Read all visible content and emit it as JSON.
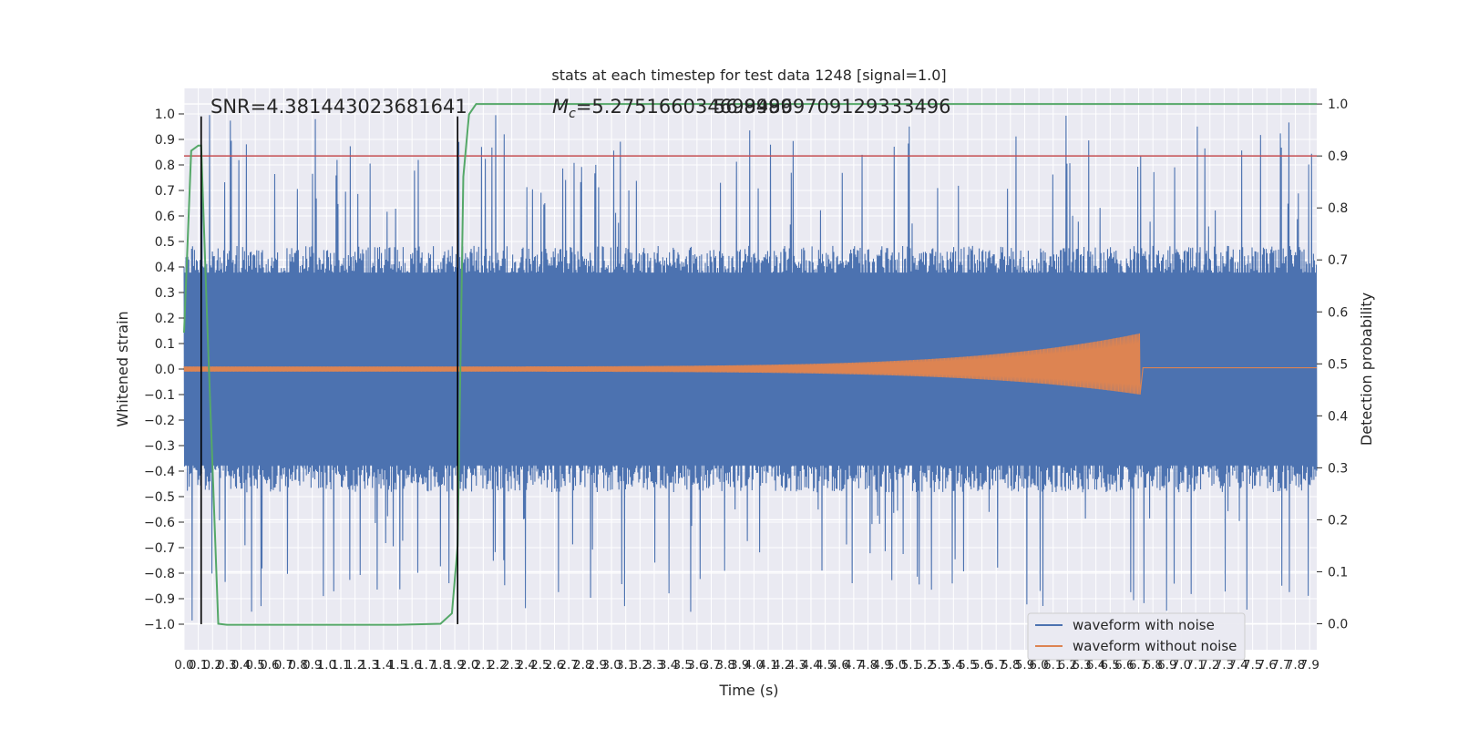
{
  "chart_data": {
    "type": "line",
    "title": "stats at each timestep for test data 1248 [signal=1.0]",
    "xlabel": "Time (s)",
    "ylabel": "Whitened strain",
    "ylabel_right": "Detection probability",
    "xlim": [
      0.0,
      7.95
    ],
    "ylim": [
      -1.1,
      1.1
    ],
    "ylim_right": [
      -0.05,
      1.03
    ],
    "x_ticks": [
      0.0,
      0.1,
      0.2,
      0.3,
      0.4,
      0.5,
      0.6,
      0.7,
      0.8,
      0.9,
      1.0,
      1.1,
      1.2,
      1.3,
      1.4,
      1.5,
      1.6,
      1.7,
      1.8,
      1.9,
      2.0,
      2.1,
      2.2,
      2.3,
      2.4,
      2.5,
      2.6,
      2.7,
      2.8,
      2.9,
      3.0,
      3.1,
      3.2,
      3.3,
      3.4,
      3.5,
      3.6,
      3.7,
      3.8,
      3.9,
      4.0,
      4.1,
      4.2,
      4.3,
      4.4,
      4.5,
      4.6,
      4.7,
      4.8,
      4.9,
      5.0,
      5.1,
      5.2,
      5.3,
      5.4,
      5.5,
      5.6,
      5.7,
      5.8,
      5.9,
      6.0,
      6.1,
      6.2,
      6.3,
      6.4,
      6.5,
      6.6,
      6.7,
      6.8,
      6.9,
      7.0,
      7.1,
      7.2,
      7.3,
      7.4,
      7.5,
      7.6,
      7.7,
      7.8,
      7.9
    ],
    "y_ticks": [
      -1.0,
      -0.9,
      -0.8,
      -0.7,
      -0.6,
      -0.5,
      -0.4,
      -0.3,
      -0.2,
      -0.1,
      0.0,
      0.1,
      0.2,
      0.3,
      0.4,
      0.5,
      0.6,
      0.7,
      0.8,
      0.9,
      1.0
    ],
    "y_ticks_right": [
      0.0,
      0.1,
      0.2,
      0.3,
      0.4,
      0.5,
      0.6,
      0.7,
      0.8,
      0.9,
      1.0
    ],
    "grid": true,
    "legend_position": "bottom-right",
    "annotations": {
      "snr": "SNR=4.381443023681641",
      "mc_symbol": "M",
      "mc_sub": "c",
      "mc_value": "=5.275166034698486",
      "mc_overlap": "56.99999709129333496"
    },
    "series": [
      {
        "name": "waveform with noise",
        "color": "#4c72b0",
        "style": "noise",
        "core_envelope": 0.42,
        "max_abs": 1.0
      },
      {
        "name": "waveform without noise",
        "color": "#dd8452",
        "style": "chirp",
        "start_amplitude": 0.01,
        "peak_amplitude": 0.14,
        "peak_min": -0.1,
        "merger_time": 6.71
      },
      {
        "color": "#55a868",
        "axis": "right",
        "points": [
          [
            0.0,
            0.56
          ],
          [
            0.05,
            0.91
          ],
          [
            0.1,
            0.92
          ],
          [
            0.12,
            0.92
          ],
          [
            0.16,
            0.6
          ],
          [
            0.2,
            0.3
          ],
          [
            0.24,
            0.0
          ],
          [
            0.3,
            -0.002
          ],
          [
            1.5,
            -0.002
          ],
          [
            1.8,
            0.0
          ],
          [
            1.88,
            0.02
          ],
          [
            1.92,
            0.15
          ],
          [
            1.96,
            0.86
          ],
          [
            2.0,
            0.98
          ],
          [
            2.05,
            1.0
          ],
          [
            7.95,
            1.0
          ]
        ]
      }
    ],
    "threshold": {
      "color": "#c44e52",
      "value": 0.9,
      "axis": "right"
    },
    "markers": {
      "color": "#000000",
      "times": [
        0.12,
        1.92
      ],
      "y_range": [
        -1.0,
        0.99
      ]
    }
  }
}
